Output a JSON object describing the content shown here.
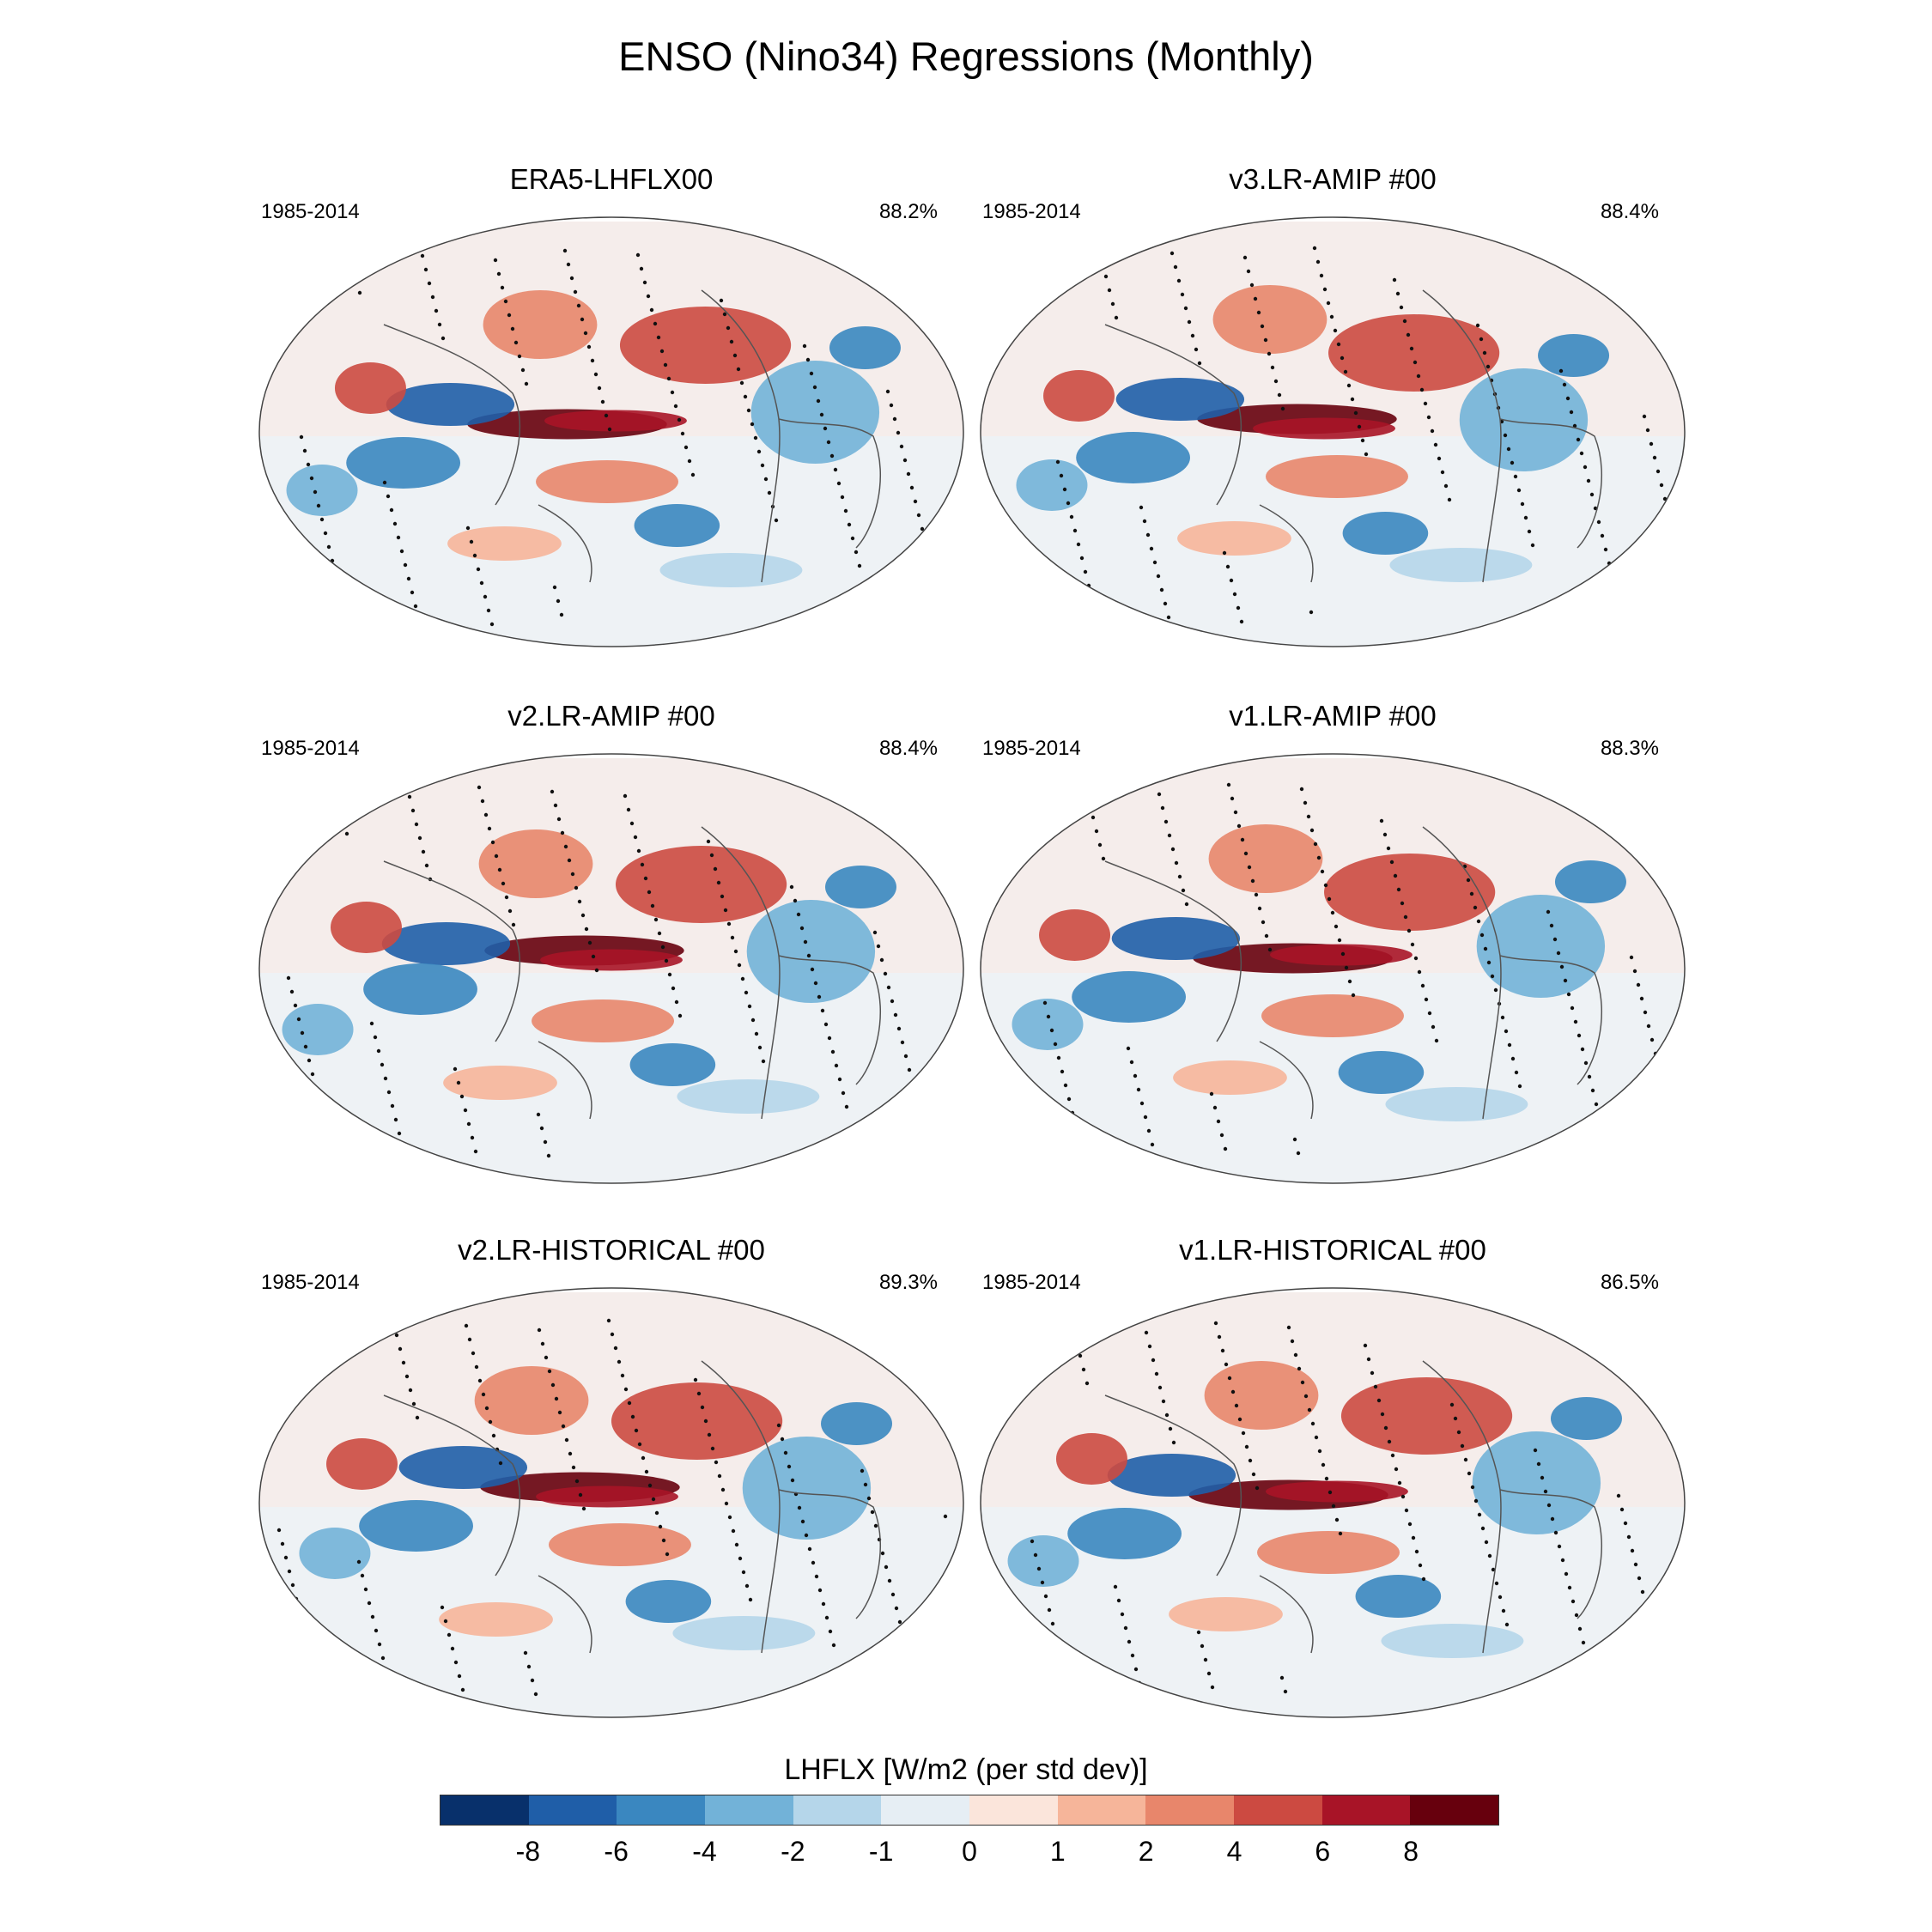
{
  "title": "ENSO (Nino34) Regressions (Monthly)",
  "panels": [
    {
      "title": "ERA5-LHFLX00",
      "period": "1985-2014",
      "percent": "88.2%"
    },
    {
      "title": "v3.LR-AMIP  #00",
      "period": "1985-2014",
      "percent": "88.4%"
    },
    {
      "title": "v2.LR-AMIP  #00",
      "period": "1985-2014",
      "percent": "88.4%"
    },
    {
      "title": "v1.LR-AMIP  #00",
      "period": "1985-2014",
      "percent": "88.3%"
    },
    {
      "title": "v2.LR-HISTORICAL  #00",
      "period": "1985-2014",
      "percent": "89.3%"
    },
    {
      "title": "v1.LR-HISTORICAL  #00",
      "period": "1985-2014",
      "percent": "86.5%"
    }
  ],
  "colorbar": {
    "title": "LHFLX [W/m2 (per std dev)]",
    "labels": [
      "-8",
      "-6",
      "-4",
      "-2",
      "-1",
      "0",
      "1",
      "2",
      "4",
      "6",
      "8"
    ],
    "colors": [
      "#08306b",
      "#1f5ea8",
      "#3a87c0",
      "#72b2d8",
      "#b5d6ea",
      "#e6eef4",
      "#fbe5db",
      "#f6b59a",
      "#e8866b",
      "#cc4a41",
      "#a81427",
      "#67000d"
    ]
  }
}
